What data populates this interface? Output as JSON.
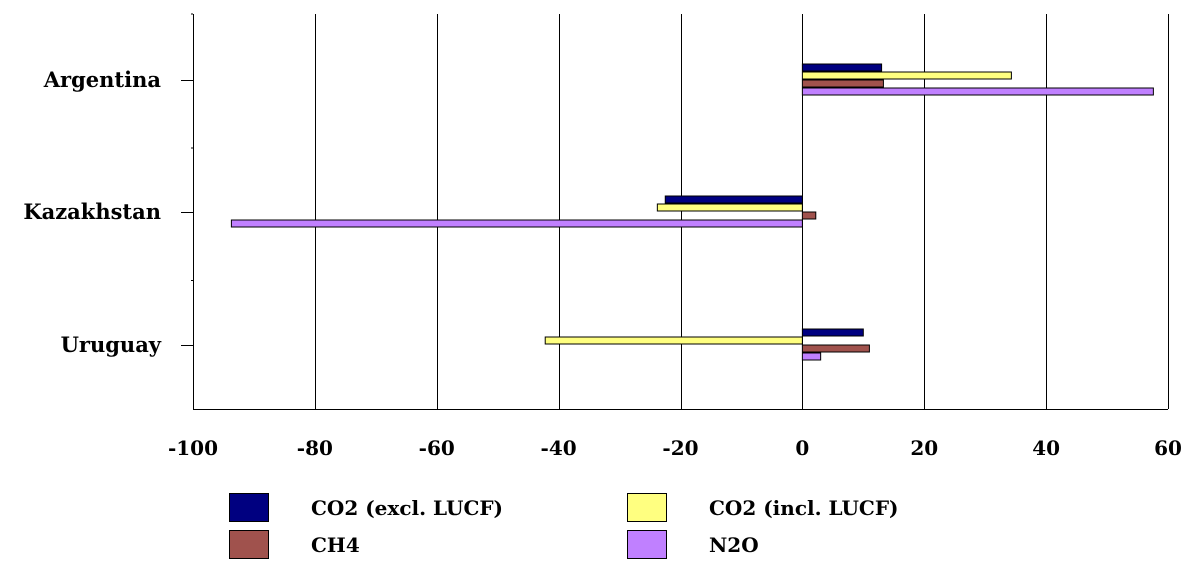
{
  "chart_data": {
    "type": "bar",
    "orientation": "horizontal",
    "categories": [
      "Argentina",
      "Kazakhstan",
      "Uruguay"
    ],
    "series": [
      {
        "name": "CO2 (excl. LUCF)",
        "color": "#000080",
        "values": [
          13,
          -22.5,
          10
        ]
      },
      {
        "name": "CO2 (incl. LUCF)",
        "color": "#FFFF80",
        "values": [
          34.3,
          -23.8,
          -42.2
        ]
      },
      {
        "name": "CH4",
        "color": "#A0524D",
        "values": [
          13.3,
          2.2,
          11
        ]
      },
      {
        "name": "N2O",
        "color": "#C080FF",
        "values": [
          57.6,
          -93.7,
          3
        ]
      }
    ],
    "xlim": [
      -100,
      60
    ],
    "xticks": [
      "-100",
      "-80",
      "-60",
      "-40",
      "-20",
      "0",
      "20",
      "40",
      "60"
    ],
    "grid": "vertical",
    "legend_position": "bottom",
    "title": "",
    "xlabel": "",
    "ylabel": ""
  }
}
